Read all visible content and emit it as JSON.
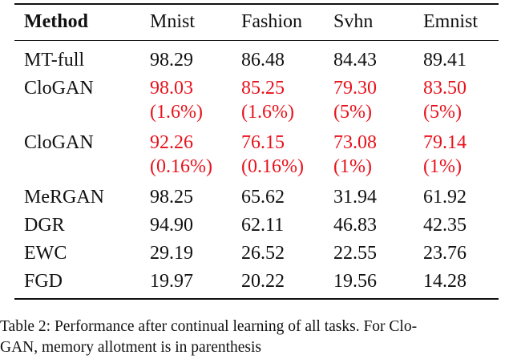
{
  "table": {
    "columns": [
      "Method",
      "Mnist",
      "Fashion",
      "Svhn",
      "Emnist"
    ],
    "rows": [
      {
        "method": "MT-full",
        "values": [
          "98.29",
          "86.48",
          "84.43",
          "89.41"
        ]
      },
      {
        "method": "CloGAN",
        "values": [
          "98.03",
          "85.25",
          "79.30",
          "83.50"
        ],
        "memory": [
          "(1.6%)",
          "(1.6%)",
          "(5%)",
          "(5%)"
        ],
        "color": "#e8121c"
      },
      {
        "method": "CloGAN",
        "values": [
          "92.26",
          "76.15",
          "73.08",
          "79.14"
        ],
        "memory": [
          "(0.16%)",
          "(0.16%)",
          "(1%)",
          "(1%)"
        ],
        "color": "#e8121c"
      },
      {
        "method": "MeRGAN",
        "values": [
          "98.25",
          "65.62",
          "31.94",
          "61.92"
        ]
      },
      {
        "method": "DGR",
        "values": [
          "94.90",
          "62.11",
          "46.83",
          "42.35"
        ]
      },
      {
        "method": "EWC",
        "values": [
          "29.19",
          "26.52",
          "22.55",
          "23.76"
        ]
      },
      {
        "method": "FGD",
        "values": [
          "19.97",
          "20.22",
          "19.56",
          "14.28"
        ]
      }
    ]
  },
  "caption": [
    "Table 2: Performance after continual learning of all tasks. For Clo-",
    "GAN, memory allotment is in parenthesis"
  ]
}
